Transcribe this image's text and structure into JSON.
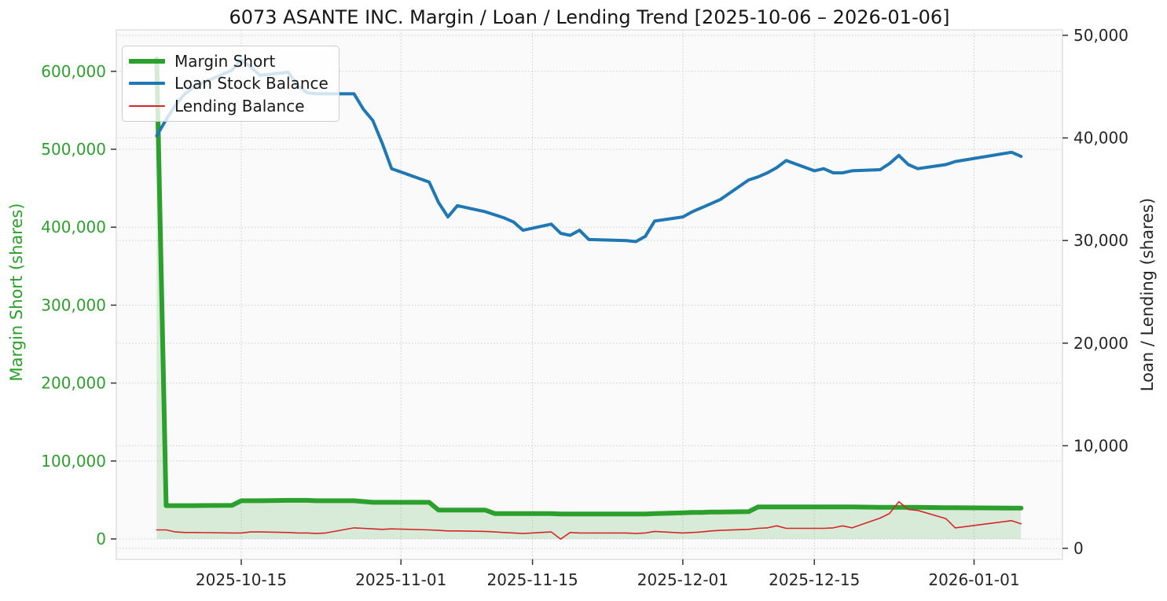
{
  "chart_data": {
    "type": "line",
    "title": "6073 ASANTE INC. Margin / Loan / Lending Trend [2025-10-06 – 2026-01-06]",
    "legend_position": "upper left",
    "grid": "dotted",
    "colors": {
      "background": "#ffffff",
      "plot_background": "#fafafa",
      "grid": "#cccccc",
      "spine": "#d9d9d9",
      "tick_mark": "#333333",
      "title_text": "#161616",
      "left_axis_text": "#2ca02c",
      "right_axis_text": "#262626"
    },
    "x_axis": {
      "tick_labels": [
        "2025-10-15",
        "2025-11-01",
        "2025-11-15",
        "2025-12-01",
        "2025-12-15",
        "2026-01-01"
      ],
      "range_dates": [
        "2025-10-02",
        "2026-01-10"
      ]
    },
    "y_left": {
      "label": "Margin Short (shares)",
      "tick_values": [
        0,
        100000,
        200000,
        300000,
        400000,
        500000,
        600000
      ],
      "tick_labels": [
        "0",
        "100,000",
        "200,000",
        "300,000",
        "400,000",
        "500,000",
        "600,000"
      ],
      "range": [
        -26200,
        653200
      ],
      "color": "#2ca02c"
    },
    "y_right": {
      "label": "Loan / Lending (shares)",
      "tick_values": [
        0,
        10000,
        20000,
        30000,
        40000,
        50000
      ],
      "tick_labels": [
        "0",
        "10,000",
        "20,000",
        "30,000",
        "40,000",
        "50,000"
      ],
      "range": [
        -1070,
        50530
      ],
      "color": "#262626"
    },
    "dates": [
      "2025-10-06",
      "2025-10-07",
      "2025-10-08",
      "2025-10-09",
      "2025-10-10",
      "2025-10-14",
      "2025-10-15",
      "2025-10-16",
      "2025-10-17",
      "2025-10-20",
      "2025-10-21",
      "2025-10-22",
      "2025-10-23",
      "2025-10-24",
      "2025-10-27",
      "2025-10-28",
      "2025-10-29",
      "2025-10-30",
      "2025-10-31",
      "2025-11-04",
      "2025-11-05",
      "2025-11-06",
      "2025-11-07",
      "2025-11-10",
      "2025-11-11",
      "2025-11-12",
      "2025-11-13",
      "2025-11-14",
      "2025-11-17",
      "2025-11-18",
      "2025-11-19",
      "2025-11-20",
      "2025-11-21",
      "2025-11-25",
      "2025-11-26",
      "2025-11-27",
      "2025-11-28",
      "2025-12-01",
      "2025-12-02",
      "2025-12-03",
      "2025-12-04",
      "2025-12-05",
      "2025-12-08",
      "2025-12-09",
      "2025-12-10",
      "2025-12-11",
      "2025-12-12",
      "2025-12-15",
      "2025-12-16",
      "2025-12-17",
      "2025-12-18",
      "2025-12-19",
      "2025-12-22",
      "2025-12-23",
      "2025-12-24",
      "2025-12-25",
      "2025-12-26",
      "2025-12-29",
      "2025-12-30",
      "2026-01-05",
      "2026-01-06"
    ],
    "series": [
      {
        "name": "Margin Short",
        "axis": "left",
        "color": "#2ca02c",
        "line_width": 6,
        "fill_color": "rgba(44,160,44,0.16)",
        "values": [
          616000,
          42700,
          42700,
          42700,
          42700,
          43000,
          49000,
          49000,
          49000,
          49500,
          49500,
          49500,
          49000,
          49000,
          49000,
          48000,
          47000,
          47000,
          47000,
          47000,
          37000,
          37000,
          37000,
          37000,
          32500,
          32500,
          32500,
          32500,
          32500,
          32000,
          32000,
          32000,
          32000,
          32000,
          32000,
          32000,
          32500,
          33500,
          34000,
          34000,
          34500,
          34500,
          35000,
          41000,
          41000,
          41000,
          41000,
          41000,
          41000,
          41000,
          41000,
          41000,
          40500,
          40500,
          40500,
          40500,
          40500,
          40000,
          40000,
          39500,
          39500
        ]
      },
      {
        "name": "Loan Stock Balance",
        "axis": "right",
        "color": "#1f77b4",
        "line_width": 4,
        "fill_color": null,
        "values": [
          40200,
          41800,
          43200,
          44300,
          45000,
          46600,
          47600,
          46900,
          46100,
          46400,
          45100,
          44400,
          44300,
          44300,
          44300,
          42800,
          41700,
          39500,
          37000,
          35700,
          33700,
          32300,
          33400,
          32800,
          32500,
          32200,
          31800,
          31000,
          31600,
          30700,
          30500,
          31000,
          30100,
          30000,
          29900,
          30400,
          31900,
          32300,
          32800,
          33200,
          33600,
          34000,
          35900,
          36200,
          36600,
          37100,
          37800,
          36800,
          37000,
          36600,
          36600,
          36800,
          36900,
          37500,
          38300,
          37400,
          37000,
          37400,
          37700,
          38600,
          38200
        ]
      },
      {
        "name": "Lending Balance",
        "axis": "right",
        "color": "#d62728",
        "line_width": 1.6,
        "fill_color": null,
        "values": [
          1800,
          1800,
          1600,
          1550,
          1550,
          1500,
          1500,
          1600,
          1600,
          1550,
          1500,
          1500,
          1450,
          1500,
          2000,
          1950,
          1900,
          1850,
          1900,
          1800,
          1750,
          1700,
          1700,
          1650,
          1600,
          1550,
          1500,
          1450,
          1600,
          900,
          1550,
          1500,
          1500,
          1500,
          1450,
          1500,
          1650,
          1500,
          1550,
          1600,
          1700,
          1750,
          1850,
          1950,
          2000,
          2200,
          1950,
          1950,
          1950,
          2000,
          2200,
          2000,
          2950,
          3400,
          4550,
          3800,
          3700,
          2900,
          2000,
          2700,
          2400
        ]
      }
    ]
  }
}
